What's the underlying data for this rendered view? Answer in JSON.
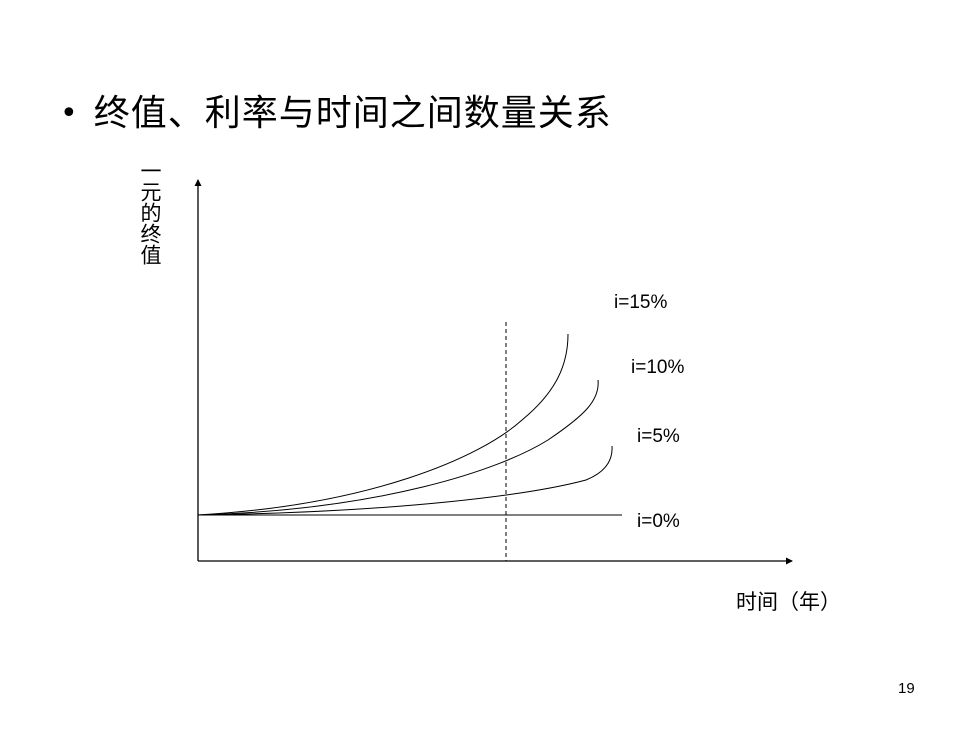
{
  "slide": {
    "bullet": "•",
    "title": "终值、利率与时间之间数量关系",
    "page_number": "19"
  },
  "diagram": {
    "y_axis_label": "一元的终值",
    "x_axis_label": "时间（年）",
    "curves": [
      {
        "label": "i=15%",
        "rate": 0.15
      },
      {
        "label": "i=10%",
        "rate": 0.1
      },
      {
        "label": "i=5%",
        "rate": 0.05
      },
      {
        "label": "i=0%",
        "rate": 0.0
      }
    ],
    "dashed_reference_line": true
  }
}
